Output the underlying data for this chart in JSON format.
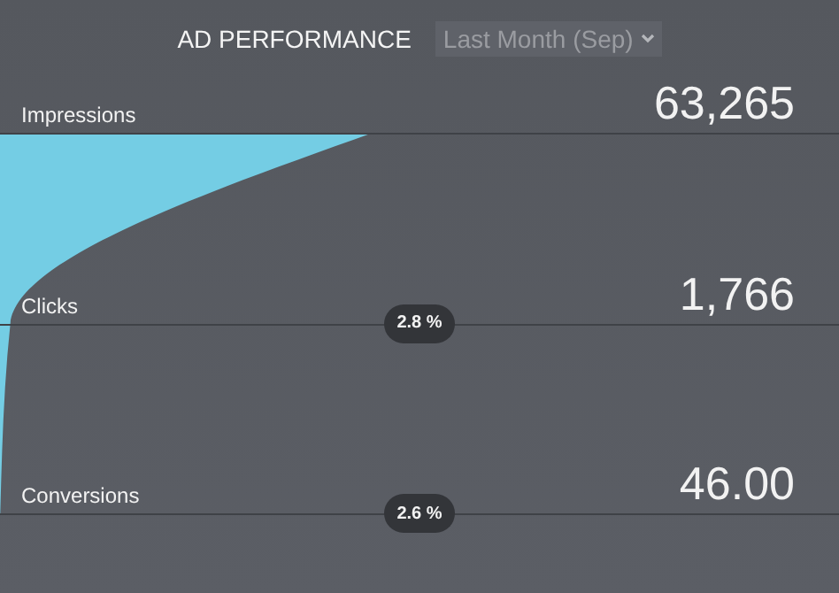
{
  "chart_data": {
    "type": "other",
    "title": "AD PERFORMANCE",
    "subtitle": "Last Month (Sep)",
    "categories": [
      "Impressions",
      "Clicks",
      "Conversions"
    ],
    "values": [
      63265,
      1766,
      46
    ],
    "value_labels": [
      "63,265",
      "1,766",
      "46.00"
    ],
    "color": "#74cde4",
    "annotations": [
      "2.8 %",
      "2.6 %"
    ]
  }
}
